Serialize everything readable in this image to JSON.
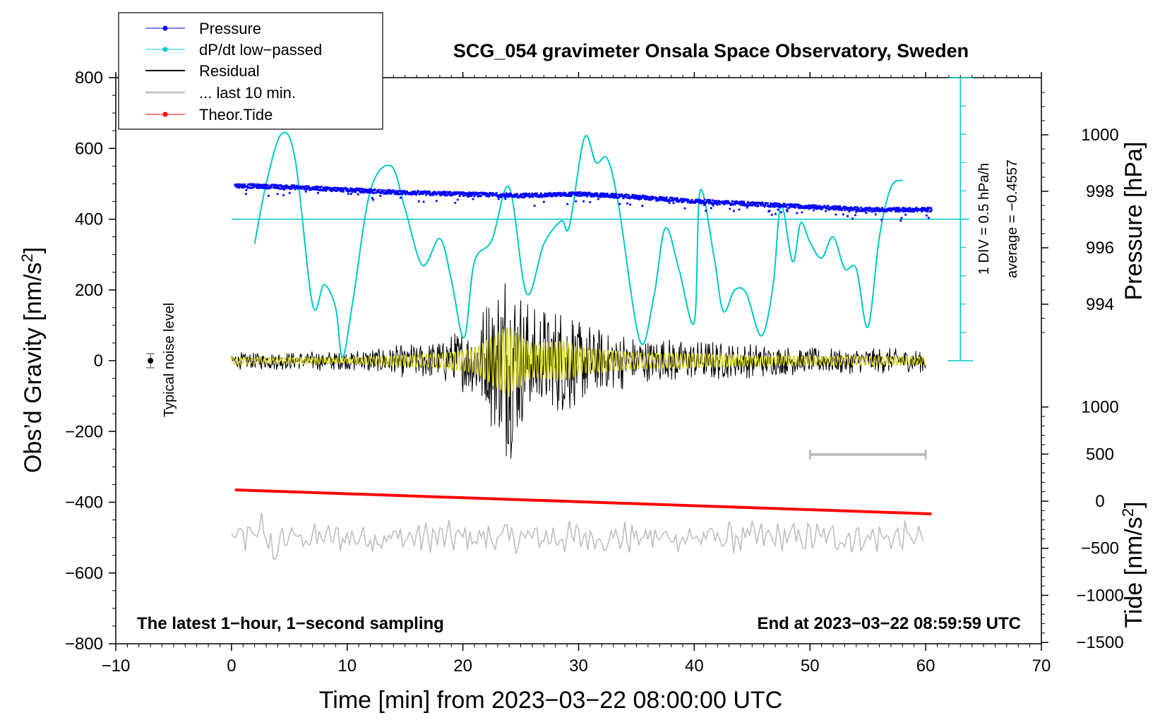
{
  "chart_data": {
    "type": "line",
    "title": "SCG_054 gravimeter Onsala Space Observatory, Sweden",
    "xlabel": "Time [min] from 2023−03−22 08:00:00 UTC",
    "ylabel": "Obs’d Gravity [nm/s",
    "ylabel_sup": "2",
    "ylabel_close": "]",
    "y2label": "Pressure [hPa]",
    "y3label": "Tide [nm/s",
    "y3label_sup": "2",
    "y3label_close": "]",
    "xlim": [
      -10,
      70
    ],
    "ylim": [
      -800,
      800
    ],
    "pressure_lim": [
      992,
      1002
    ],
    "tide_lim": [
      -1500,
      1500
    ],
    "x_ticks": [
      "−10",
      "0",
      "10",
      "20",
      "30",
      "40",
      "50",
      "60",
      "70"
    ],
    "y_ticks": [
      "800",
      "600",
      "400",
      "200",
      "0",
      "−200",
      "−400",
      "−600",
      "−800"
    ],
    "pressure_ticks": [
      "1000",
      "998",
      "996",
      "994"
    ],
    "tide_ticks": [
      "1000",
      "500",
      "0",
      "−500",
      "−1000",
      "−1500"
    ],
    "legend": [
      {
        "name": "Pressure",
        "color": "#0000ff",
        "marker": true
      },
      {
        "name": "dP/dt low−passed",
        "color": "#00c8c8",
        "marker": true
      },
      {
        "name": "Residual",
        "color": "#000000",
        "marker": false
      },
      {
        "name": "... last 10 min.",
        "color": "#bebebe",
        "marker": false
      },
      {
        "name": "Theor.Tide",
        "color": "#ff0000",
        "marker": true
      }
    ],
    "annotations": {
      "bottom_left": "The latest 1−hour, 1−second sampling",
      "bottom_right": "End at 2023−03−22 08:59:59 UTC",
      "noise_label": "Typical noise level",
      "div_label": "1 DIV = 0.5 hPa/h",
      "average_label": "average = −0.4557"
    },
    "series": [
      {
        "name": "Pressure",
        "unit": "hPa",
        "color": "#0000ff",
        "x": [
          0.3,
          5,
          10,
          15,
          20,
          25,
          30,
          35,
          40,
          45,
          50,
          55,
          60.5
        ],
        "values": [
          998.2,
          998.15,
          998.05,
          997.95,
          997.9,
          997.85,
          997.9,
          997.8,
          997.65,
          997.55,
          997.45,
          997.35,
          997.35
        ]
      },
      {
        "name": "dP/dt low−passed",
        "unit": "hPa/h (1 DIV = 0.5)",
        "color": "#00c8c8",
        "zero_line_gravity": 400,
        "x": [
          2,
          3,
          4.3,
          5.5,
          7,
          8,
          9,
          9.6,
          10.5,
          12,
          13.8,
          15,
          16.5,
          18,
          19,
          20.1,
          21,
          22.5,
          24,
          25.5,
          27,
          28.5,
          29.2,
          30.5,
          31.5,
          32.5,
          33.5,
          35.3,
          36.5,
          37.5,
          38.7,
          40,
          40.5,
          41.7,
          42.5,
          43.5,
          44.5,
          45.8,
          46.8,
          47.5,
          48.5,
          49.2,
          50,
          51,
          52,
          53,
          54,
          55,
          56,
          57,
          58
        ],
        "values": [
          330,
          500,
          640,
          570,
          160,
          215,
          150,
          10,
          170,
          480,
          550,
          430,
          270,
          345,
          230,
          65,
          280,
          340,
          490,
          190,
          330,
          395,
          380,
          630,
          560,
          570,
          430,
          55,
          180,
          375,
          255,
          110,
          480,
          295,
          140,
          200,
          190,
          70,
          210,
          440,
          280,
          390,
          335,
          290,
          350,
          260,
          260,
          95,
          350,
          490,
          510
        ]
      },
      {
        "name": "Residual",
        "unit": "nm/s^2",
        "color": "#000000",
        "x_range": [
          0,
          60
        ],
        "envelope_x": [
          0,
          10,
          18,
          21,
          23,
          24,
          24.5,
          26,
          29,
          30,
          35,
          40,
          50,
          60
        ],
        "envelope_amp": [
          25,
          30,
          60,
          110,
          250,
          320,
          260,
          150,
          180,
          120,
          70,
          60,
          40,
          35
        ]
      },
      {
        "name": "... last 10 min.",
        "unit": "nm/s^2",
        "color": "#bebebe",
        "baseline": -500,
        "x_range": [
          0,
          60
        ],
        "amplitude": 35
      },
      {
        "name": "Theor.Tide",
        "unit": "nm/s^2",
        "color": "#ff0000",
        "x": [
          0.3,
          60.5
        ],
        "values": [
          120,
          -135
        ]
      }
    ]
  }
}
